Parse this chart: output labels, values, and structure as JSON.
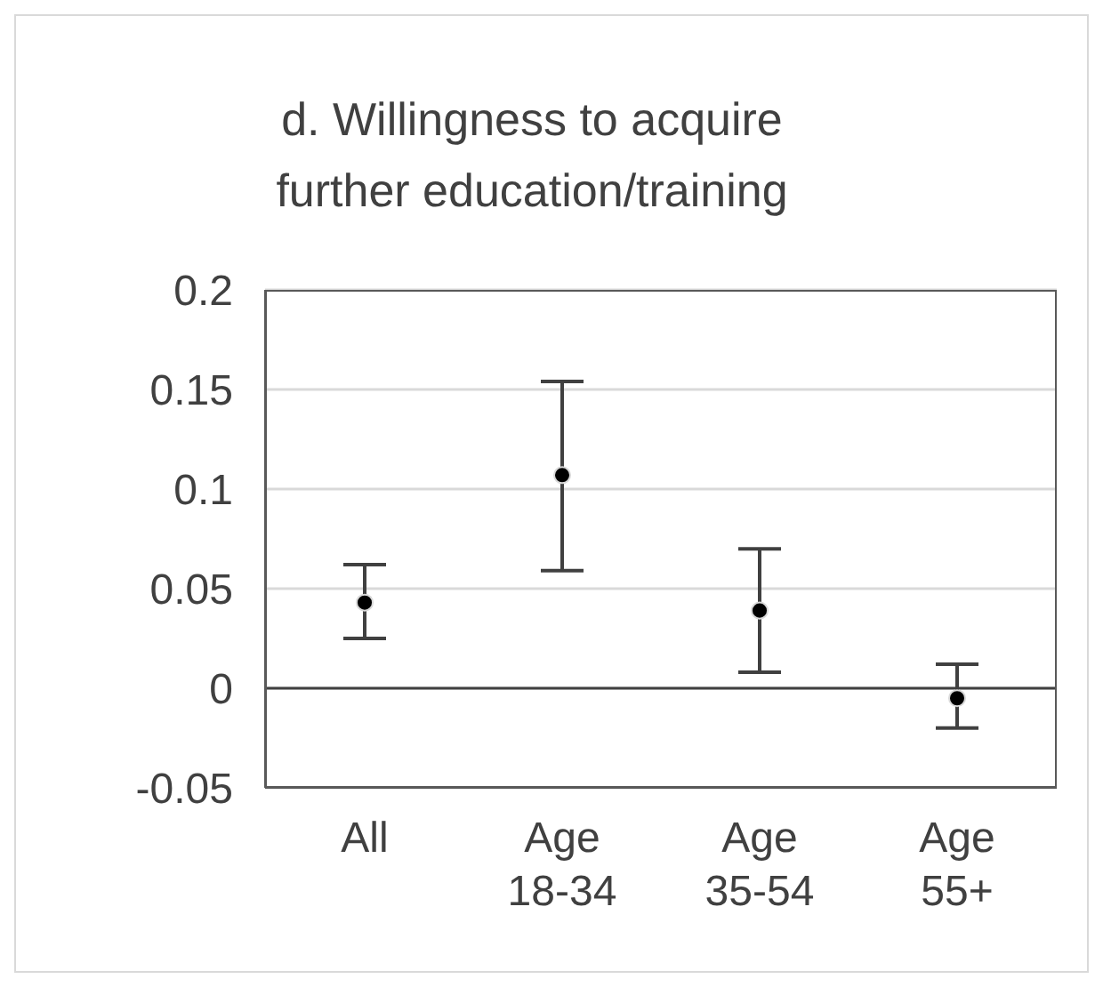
{
  "chart_data": {
    "type": "scatter",
    "title": "d. Willingness to acquire further education/training",
    "categories": [
      "All",
      "Age 18-34",
      "Age 35-54",
      "Age 55+"
    ],
    "series": [
      {
        "color": "#000000",
        "values": [
          0.043,
          0.107,
          0.039,
          -0.005
        ],
        "errors": [
          [
            0.025,
            0.062
          ],
          [
            0.059,
            0.154
          ],
          [
            0.008,
            0.07
          ],
          [
            -0.02,
            0.012
          ]
        ]
      }
    ],
    "ylim": [
      -0.05,
      0.2
    ],
    "yticks": [
      -0.05,
      0,
      0.05,
      0.1,
      0.15,
      0.2
    ],
    "grid": "y",
    "marker": "circle",
    "ref_lines": [
      {
        "axis": "y",
        "value": 0,
        "color": "#404040"
      }
    ]
  }
}
